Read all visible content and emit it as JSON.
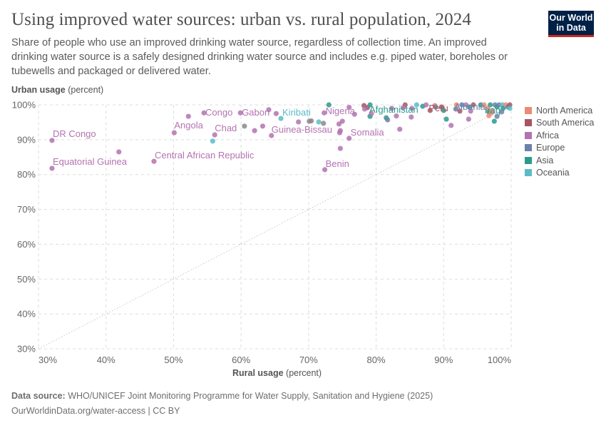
{
  "header": {
    "title": "Using improved water sources: urban vs. rural population, 2024",
    "subtitle": "Share of people who use an improved drinking water source, regardless of collection time. An improved drinking water source is a safely designed drinking water source and includes e.g. piped water, boreholes or tubewells and packaged or delivered water.",
    "logo": "Our World in Data"
  },
  "footer": {
    "source_label": "Data source:",
    "source_text": "WHO/UNICEF Joint Monitoring Programme for Water Supply, Sanitation and Hygiene (2025)",
    "link": "OurWorldinData.org/water-access | CC BY"
  },
  "chart_data": {
    "type": "scatter",
    "title": "Using improved water sources: urban vs. rural population, 2024",
    "xlabel_bold": "Rural usage",
    "xlabel_unit": "(percent)",
    "ylabel_bold": "Urban usage",
    "ylabel_unit": "(percent)",
    "xlim": [
      30,
      100
    ],
    "ylim": [
      30,
      100
    ],
    "xticks": [
      "30%",
      "40%",
      "50%",
      "60%",
      "70%",
      "80%",
      "90%",
      "100%"
    ],
    "yticks": [
      "30%",
      "40%",
      "50%",
      "60%",
      "70%",
      "80%",
      "90%",
      "100%"
    ],
    "grid": true,
    "reference_line": "y = x (dotted)",
    "legend_placement": "right",
    "legend": [
      {
        "name": "North America",
        "color": "#eb8a76"
      },
      {
        "name": "South America",
        "color": "#a65561"
      },
      {
        "name": "Africa",
        "color": "#b373b0"
      },
      {
        "name": "Europe",
        "color": "#6b80aa"
      },
      {
        "name": "Asia",
        "color": "#2a9a8d"
      },
      {
        "name": "Oceania",
        "color": "#5bbcc8"
      }
    ],
    "no_region_color": "#8a8a8a",
    "points": [
      {
        "label": "DR Congo",
        "x": 32.0,
        "y": 89.8,
        "region": "Africa"
      },
      {
        "label": "Equatorial Guinea",
        "x": 32.0,
        "y": 81.8,
        "region": "Africa"
      },
      {
        "label": "Angola",
        "x": 50.1,
        "y": 92.0,
        "region": "Africa"
      },
      {
        "label": "Congo",
        "x": 54.5,
        "y": 97.7,
        "region": "Africa"
      },
      {
        "label": "Gabon",
        "x": 59.9,
        "y": 97.7,
        "region": "Africa"
      },
      {
        "label": "Kiribati",
        "x": 65.9,
        "y": 96.1,
        "region": "Oceania"
      },
      {
        "label": "Chad",
        "x": 56.1,
        "y": 91.4,
        "region": "Africa"
      },
      {
        "label": "Guinea-Bissau",
        "x": 64.5,
        "y": 91.2,
        "region": "Africa"
      },
      {
        "label": "Central African Republic",
        "x": 47.1,
        "y": 83.8,
        "region": "Africa"
      },
      {
        "label": "Nigeria",
        "x": 72.3,
        "y": 97.7,
        "region": "Africa"
      },
      {
        "label": "Somalia",
        "x": 76.0,
        "y": 90.4,
        "region": "Africa"
      },
      {
        "label": "Benin",
        "x": 72.4,
        "y": 81.4,
        "region": "Africa"
      },
      {
        "label": "Afghanistan",
        "x": 79.1,
        "y": 96.7,
        "region": "Asia"
      },
      {
        "label": "Peru",
        "x": 88.0,
        "y": 98.4,
        "region": "South America"
      },
      {
        "label": "Albania",
        "x": 91.8,
        "y": 98.8,
        "region": "Europe"
      },
      {
        "label": "Iraq",
        "x": 96.7,
        "y": 98.0,
        "region": "Asia"
      },
      {
        "x": 41.9,
        "y": 86.5,
        "region": "Africa"
      },
      {
        "x": 52.2,
        "y": 96.7,
        "region": "Africa"
      },
      {
        "x": 55.8,
        "y": 89.6,
        "region": "Oceania"
      },
      {
        "x": 60.5,
        "y": 93.9,
        "region": ""
      },
      {
        "x": 62.0,
        "y": 92.6,
        "region": "Africa"
      },
      {
        "x": 63.2,
        "y": 93.9,
        "region": "Africa"
      },
      {
        "x": 64.1,
        "y": 98.6,
        "region": "Africa"
      },
      {
        "x": 65.2,
        "y": 97.5,
        "region": "Africa"
      },
      {
        "x": 68.5,
        "y": 95.1,
        "region": "Africa"
      },
      {
        "x": 70.1,
        "y": 95.3,
        "region": ""
      },
      {
        "x": 70.4,
        "y": 95.4,
        "region": ""
      },
      {
        "x": 71.5,
        "y": 95.1,
        "region": "Oceania"
      },
      {
        "x": 72.2,
        "y": 94.7,
        "region": ""
      },
      {
        "x": 73.0,
        "y": 100,
        "region": "Asia"
      },
      {
        "x": 74.5,
        "y": 94.5,
        "region": "Africa"
      },
      {
        "x": 74.7,
        "y": 92.6,
        "region": "Africa"
      },
      {
        "x": 74.6,
        "y": 92.0,
        "region": "Africa"
      },
      {
        "x": 74.7,
        "y": 87.5,
        "region": "Africa"
      },
      {
        "x": 75.0,
        "y": 95.3,
        "region": "Africa"
      },
      {
        "x": 76.0,
        "y": 99.3,
        "region": "Africa"
      },
      {
        "x": 76.8,
        "y": 97.3,
        "region": "Africa"
      },
      {
        "x": 78.2,
        "y": 99.8,
        "region": "South America"
      },
      {
        "x": 78.7,
        "y": 99.2,
        "region": "South America"
      },
      {
        "x": 79.1,
        "y": 100,
        "region": "Asia"
      },
      {
        "x": 78.3,
        "y": 98.8,
        "region": "Africa"
      },
      {
        "x": 79.3,
        "y": 97.5,
        "region": "Africa"
      },
      {
        "x": 81.5,
        "y": 96.3,
        "region": "Asia"
      },
      {
        "x": 81.7,
        "y": 95.7,
        "region": "Europe"
      },
      {
        "x": 82.3,
        "y": 99.0,
        "region": "Africa"
      },
      {
        "x": 83.0,
        "y": 96.8,
        "region": "Africa"
      },
      {
        "x": 84.3,
        "y": 100,
        "region": "South America"
      },
      {
        "x": 84.0,
        "y": 99.2,
        "region": "Africa"
      },
      {
        "x": 83.5,
        "y": 93.0,
        "region": "Africa"
      },
      {
        "x": 85.3,
        "y": 99.0,
        "region": "Africa"
      },
      {
        "x": 85.2,
        "y": 96.5,
        "region": "Africa"
      },
      {
        "x": 86.0,
        "y": 100,
        "region": "Oceania"
      },
      {
        "x": 86.9,
        "y": 99.6,
        "region": "Asia"
      },
      {
        "x": 87.4,
        "y": 100,
        "region": "Africa"
      },
      {
        "x": 88.7,
        "y": 99.8,
        "region": "North America"
      },
      {
        "x": 89.7,
        "y": 99.4,
        "region": "South America"
      },
      {
        "x": 88.8,
        "y": 99.4,
        "region": "Europe"
      },
      {
        "x": 90.0,
        "y": 98.4,
        "region": "Asia"
      },
      {
        "x": 90.4,
        "y": 95.9,
        "region": "Asia"
      },
      {
        "x": 91.1,
        "y": 94.1,
        "region": "Africa"
      },
      {
        "x": 91.9,
        "y": 100,
        "region": "North America"
      },
      {
        "x": 92.7,
        "y": 100,
        "region": "Europe"
      },
      {
        "x": 93.3,
        "y": 100,
        "region": "Africa"
      },
      {
        "x": 93.8,
        "y": 99.4,
        "region": "Asia"
      },
      {
        "x": 94.4,
        "y": 100,
        "region": "South America"
      },
      {
        "x": 93.7,
        "y": 95.9,
        "region": "Africa"
      },
      {
        "x": 94.0,
        "y": 98.2,
        "region": "Africa"
      },
      {
        "x": 92.4,
        "y": 98.2,
        "region": "South America"
      },
      {
        "x": 95.5,
        "y": 100,
        "region": "Asia"
      },
      {
        "x": 96.0,
        "y": 100,
        "region": "North America"
      },
      {
        "x": 96.5,
        "y": 99.0,
        "region": "North America"
      },
      {
        "x": 96.9,
        "y": 100,
        "region": "Asia"
      },
      {
        "x": 97.2,
        "y": 98.4,
        "region": "North America"
      },
      {
        "x": 96.7,
        "y": 96.9,
        "region": "North America"
      },
      {
        "x": 97.1,
        "y": 97.7,
        "region": "North America"
      },
      {
        "x": 97.6,
        "y": 100,
        "region": "Europe"
      },
      {
        "x": 97.9,
        "y": 99.4,
        "region": "Asia"
      },
      {
        "x": 97.5,
        "y": 95.3,
        "region": "Asia"
      },
      {
        "x": 97.9,
        "y": 96.7,
        "region": "Europe"
      },
      {
        "x": 98.2,
        "y": 100,
        "region": "Europe"
      },
      {
        "x": 98.7,
        "y": 100,
        "region": "Oceania"
      },
      {
        "x": 98.8,
        "y": 99.0,
        "region": "Asia"
      },
      {
        "x": 98.6,
        "y": 98.0,
        "region": "Europe"
      },
      {
        "x": 99.2,
        "y": 100,
        "region": "North America"
      },
      {
        "x": 99.5,
        "y": 99.4,
        "region": "Europe"
      },
      {
        "x": 99.8,
        "y": 100,
        "region": "South America"
      },
      {
        "x": 99.8,
        "y": 99.0,
        "region": "Oceania"
      }
    ]
  }
}
